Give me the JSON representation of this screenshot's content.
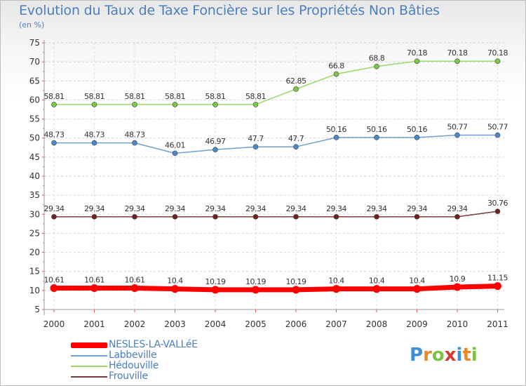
{
  "header": {
    "title": "Evolution du Taux de Taxe Foncière sur les Propriétés Non Bâties",
    "subtitle": "(en %)"
  },
  "logo": {
    "letters": [
      "P",
      "r",
      "o",
      "x",
      "i",
      "t",
      "i"
    ]
  },
  "chart_data": {
    "type": "line",
    "title": "Evolution du Taux de Taxe Foncière sur les Propriétés Non Bâties",
    "ylabel": "(en %)",
    "xlabel": "",
    "categories": [
      "2000",
      "2001",
      "2002",
      "2003",
      "2004",
      "2005",
      "2006",
      "2007",
      "2008",
      "2009",
      "2010",
      "2011"
    ],
    "ylim": [
      5,
      75
    ],
    "yticks": [
      5,
      10,
      15,
      20,
      25,
      30,
      35,
      40,
      45,
      50,
      55,
      60,
      65,
      70,
      75
    ],
    "grid": true,
    "legend_position": "bottom-left",
    "series": [
      {
        "name": "NESLES-LA-VALLéE",
        "color": "#ff0000",
        "marker": "#ff0000",
        "width": "thick",
        "values": [
          10.61,
          10.61,
          10.61,
          10.4,
          10.19,
          10.19,
          10.19,
          10.4,
          10.4,
          10.4,
          10.9,
          11.15
        ],
        "labels": [
          "10.61",
          "10.61",
          "10.61",
          "10.4",
          "10.19",
          "10.19",
          "10.19",
          "10.4",
          "10.4",
          "10.4",
          "10.9",
          "11.15"
        ]
      },
      {
        "name": "Labbeville",
        "color": "#6fa0cf",
        "marker": "#4b8ac8",
        "width": "thin",
        "values": [
          48.73,
          48.73,
          48.73,
          46.01,
          46.97,
          47.7,
          47.7,
          50.16,
          50.16,
          50.16,
          50.77,
          50.77
        ],
        "labels": [
          "48.73",
          "48.73",
          "48.73",
          "46.01",
          "46.97",
          "47.7",
          "47.7",
          "50.16",
          "50.16",
          "50.16",
          "50.77",
          "50.77"
        ]
      },
      {
        "name": "Hédouville",
        "color": "#9bd86a",
        "marker": "#7cc947",
        "width": "thin",
        "values": [
          58.81,
          58.81,
          58.81,
          58.81,
          58.81,
          58.81,
          62.85,
          66.8,
          68.8,
          70.18,
          70.18,
          70.18
        ],
        "labels": [
          "58.81",
          "58.81",
          "58.81",
          "58.81",
          "58.81",
          "58.81",
          "62.85",
          "66.8",
          "68.8",
          "70.18",
          "70.18",
          "70.18"
        ]
      },
      {
        "name": "Frouville",
        "color": "#7a3a3a",
        "marker": "#6b2222",
        "width": "thin",
        "values": [
          29.34,
          29.34,
          29.34,
          29.34,
          29.34,
          29.34,
          29.34,
          29.34,
          29.34,
          29.34,
          29.34,
          30.76
        ],
        "labels": [
          "29.34",
          "29.34",
          "29.34",
          "29.34",
          "29.34",
          "29.34",
          "29.34",
          "29.34",
          "29.34",
          "29.34",
          "29.34",
          "30.76"
        ]
      }
    ]
  }
}
